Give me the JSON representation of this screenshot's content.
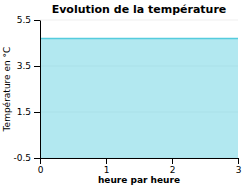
{
  "chart_data": {
    "type": "area",
    "title": "Evolution de la température",
    "xlabel": "heure par heure",
    "ylabel": "Température en °C",
    "x": [
      0,
      3
    ],
    "values": [
      4.7,
      4.7
    ],
    "color": "#55ccdd",
    "xlim": [
      0,
      3
    ],
    "ylim": [
      -0.5,
      5.5
    ],
    "xticks": [
      0,
      1,
      2,
      3
    ],
    "yticks": [
      -0.5,
      1.5,
      3.5,
      5.5
    ],
    "grid": true
  }
}
